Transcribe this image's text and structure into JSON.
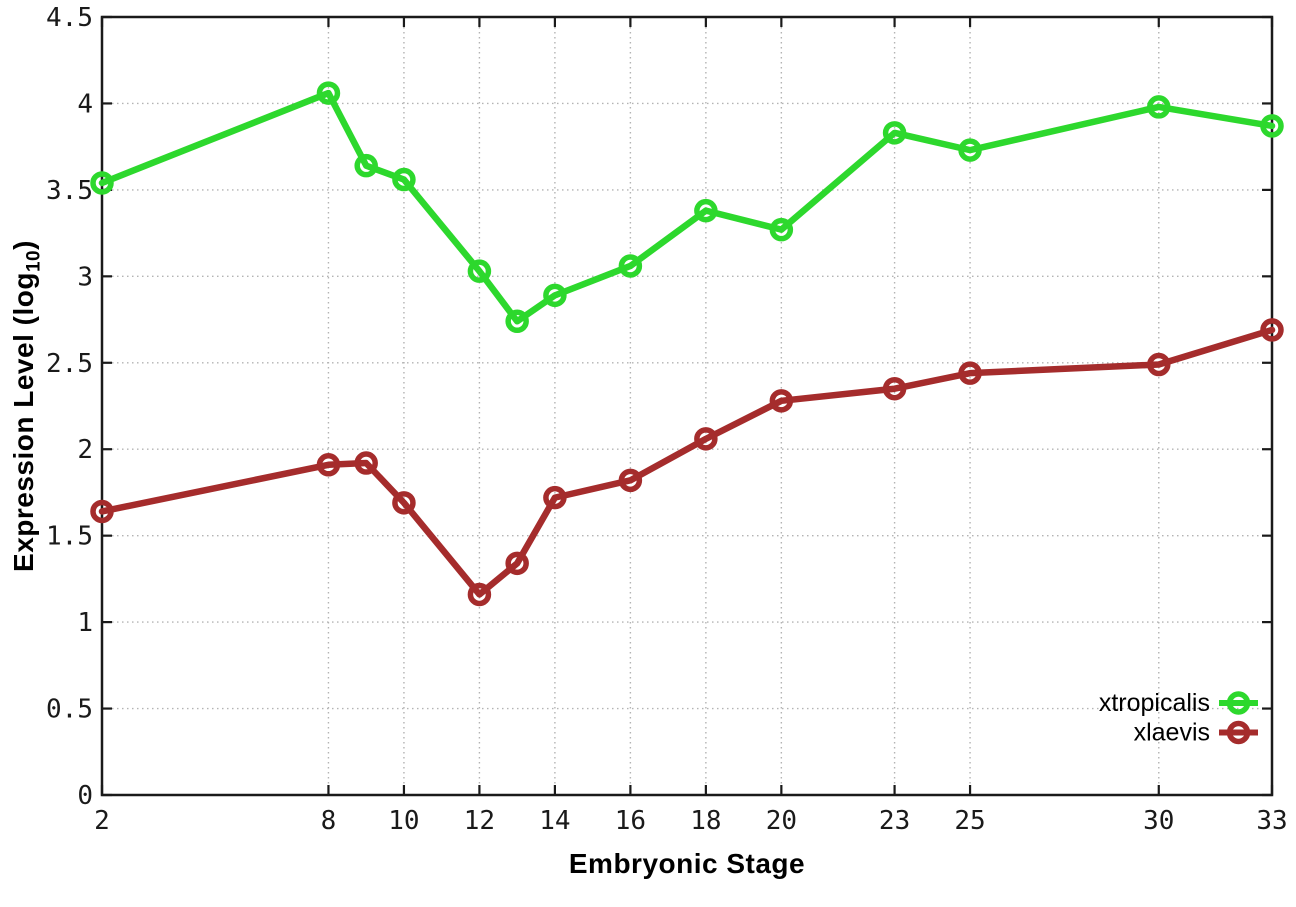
{
  "chart_data": {
    "type": "line",
    "title": "",
    "xlabel": "Embryonic Stage",
    "ylabel": "Expression Level (log10)",
    "ylabel_parts": {
      "pre": "Expression Level (log",
      "sub": "10",
      "post": ")"
    },
    "x": [
      2,
      8,
      9,
      10,
      12,
      13,
      14,
      16,
      18,
      20,
      23,
      25,
      30,
      33
    ],
    "series": [
      {
        "name": "xtropicalis",
        "color": "#2dd82d",
        "marker": "open-circle",
        "values": [
          3.54,
          4.06,
          3.64,
          3.56,
          3.03,
          2.74,
          2.89,
          3.06,
          3.38,
          3.27,
          3.83,
          3.73,
          3.98,
          3.87
        ]
      },
      {
        "name": "xlaevis",
        "color": "#a52c2c",
        "marker": "open-circle",
        "values": [
          1.64,
          1.91,
          1.92,
          1.69,
          1.16,
          1.34,
          1.72,
          1.82,
          2.06,
          2.28,
          2.35,
          2.44,
          2.49,
          2.69
        ]
      }
    ],
    "xlim": [
      2,
      33
    ],
    "ylim": [
      0,
      4.5
    ],
    "xticks": [
      2,
      8,
      10,
      12,
      14,
      16,
      18,
      20,
      23,
      25,
      30,
      33
    ],
    "yticks": [
      0,
      0.5,
      1,
      1.5,
      2,
      2.5,
      3,
      3.5,
      4,
      4.5
    ],
    "grid": true,
    "grid_style": "dotted",
    "legend": {
      "position": "bottom-right",
      "entries": [
        "xtropicalis",
        "xlaevis"
      ]
    }
  },
  "styles": {
    "background": "#ffffff",
    "axis_color": "#1a1a1a",
    "grid_color": "#b3b3b3",
    "tick_label_color": "#1a1a1a",
    "legend_text_color": "#000000"
  }
}
